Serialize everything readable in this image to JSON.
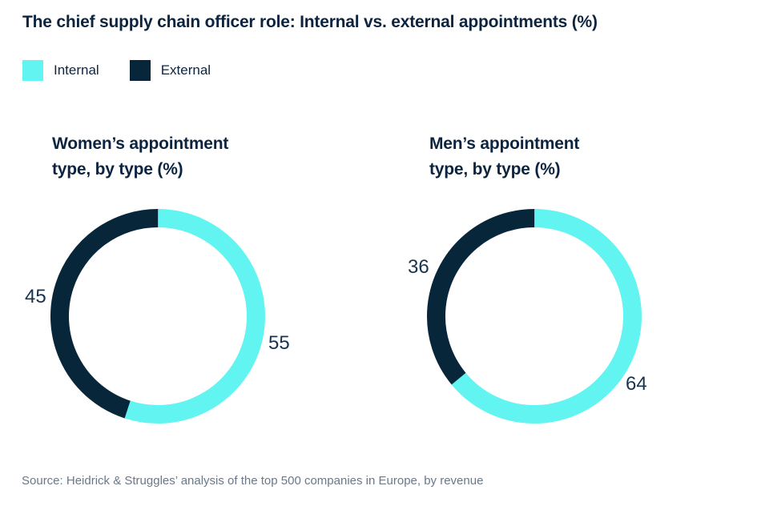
{
  "page": {
    "title": "The chief supply chain officer role: Internal vs. external appointments (%)",
    "source": "Source: Heidrick & Struggles’ analysis of the top 500 companies in Europe, by revenue"
  },
  "colors": {
    "internal": "#61f4f1",
    "external": "#08263a",
    "heading_text": "#0c2440",
    "value_text": "#16344f",
    "source_text": "#6b7888"
  },
  "legend": {
    "items": [
      {
        "label": "Internal",
        "color": "#61f4f1"
      },
      {
        "label": "External",
        "color": "#08263a"
      }
    ]
  },
  "chart_data": [
    {
      "type": "pie",
      "subtype": "donut",
      "title": "Women’s appointment type, by type (%)",
      "title_lines": [
        "Women’s appointment",
        "type, by type (%)"
      ],
      "unit": "%",
      "start_angle_deg": 0,
      "direction": "clockwise",
      "slices": [
        {
          "label": "Internal",
          "value": 55
        },
        {
          "label": "External",
          "value": 45
        }
      ]
    },
    {
      "type": "pie",
      "subtype": "donut",
      "title": "Men’s appointment type, by type (%)",
      "title_lines": [
        "Men’s appointment",
        "type, by type (%)"
      ],
      "unit": "%",
      "start_angle_deg": 0,
      "direction": "clockwise",
      "slices": [
        {
          "label": "Internal",
          "value": 64
        },
        {
          "label": "External",
          "value": 36
        }
      ]
    }
  ]
}
